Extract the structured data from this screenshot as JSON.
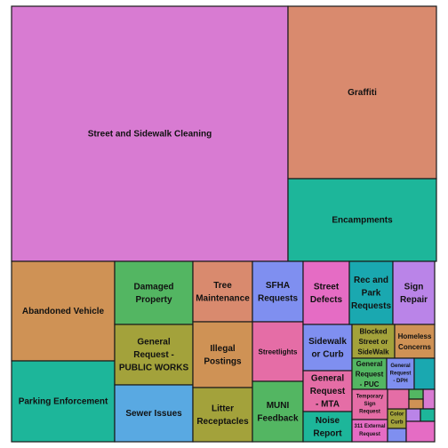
{
  "chart_data": {
    "type": "treemap",
    "title": "",
    "cells": [
      {
        "label": "Street and Sidewalk Cleaning",
        "color": "#d87bd2"
      },
      {
        "label": "Graffiti",
        "color": "#d98a6e"
      },
      {
        "label": "Encampments",
        "color": "#1db69a"
      },
      {
        "label": "Abandoned Vehicle",
        "color": "#cf9255"
      },
      {
        "label": "Parking Enforcement",
        "color": "#1db69a"
      },
      {
        "label": "Damaged Property",
        "color": "#53b662"
      },
      {
        "label": "General Request - PUBLIC WORKS",
        "color": "#a3a23b"
      },
      {
        "label": "Sewer Issues",
        "color": "#59a9e2"
      },
      {
        "label": "Tree Maintenance",
        "color": "#d98a6e"
      },
      {
        "label": "Illegal Postings",
        "color": "#cf9255"
      },
      {
        "label": "Litter Receptacles",
        "color": "#a3a23b"
      },
      {
        "label": "SFHA Requests",
        "color": "#7f8ff0"
      },
      {
        "label": "Streetlights",
        "color": "#e56da6"
      },
      {
        "label": "MUNI Feedback",
        "color": "#53b662"
      },
      {
        "label": "Street Defects",
        "color": "#e56cc4"
      },
      {
        "label": "Sidewalk or Curb",
        "color": "#7f8ff0"
      },
      {
        "label": "General Request - MTA",
        "color": "#e56da6"
      },
      {
        "label": "Noise Report",
        "color": "#1db69a"
      },
      {
        "label": "Rec and Park Requests",
        "color": "#1aa8b0"
      },
      {
        "label": "Sign Repair",
        "color": "#ba84e8"
      },
      {
        "label": "Blocked Street or SideWalk",
        "color": "#a3a23b"
      },
      {
        "label": "Homeless Concerns",
        "color": "#cf9255"
      },
      {
        "label": "General Request - PUC",
        "color": "#53b662"
      },
      {
        "label": "General Request - DPH",
        "color": "#7f8ff0"
      },
      {
        "label": "Temporary Sign Request",
        "color": "#e56da6"
      },
      {
        "label": "311 External Request",
        "color": "#e56cc4"
      },
      {
        "label": "Color Curb",
        "color": "#a3a23b"
      },
      {
        "label": "",
        "color": "#1aa8b0"
      },
      {
        "label": "",
        "color": "#d87bd2"
      },
      {
        "label": "",
        "color": "#e56da6"
      },
      {
        "label": "",
        "color": "#53b662"
      },
      {
        "label": "",
        "color": "#cf9255"
      },
      {
        "label": "",
        "color": "#ba84e8"
      },
      {
        "label": "",
        "color": "#1db69a"
      },
      {
        "label": "",
        "color": "#7f8ff0"
      },
      {
        "label": "",
        "color": "#e56cc4"
      }
    ]
  }
}
